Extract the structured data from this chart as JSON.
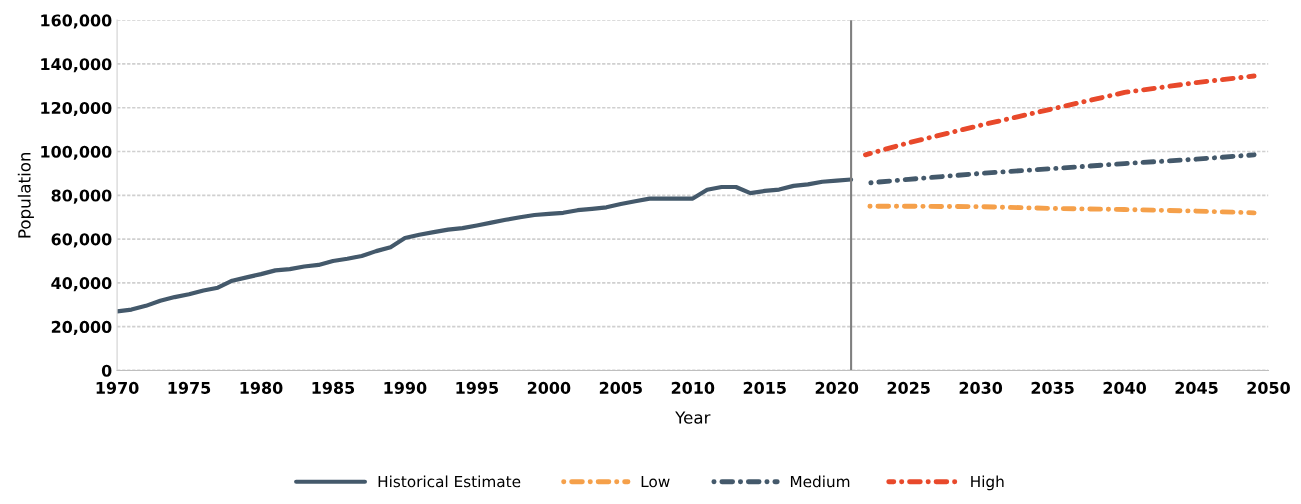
{
  "chart_data": {
    "type": "line",
    "xlabel": "Year",
    "ylabel": "Population",
    "xlim": [
      1970,
      2050
    ],
    "xticks": [
      1970,
      1975,
      1980,
      1985,
      1990,
      1995,
      2000,
      2005,
      2010,
      2015,
      2020,
      2025,
      2030,
      2035,
      2040,
      2045,
      2050
    ],
    "ylim": [
      0,
      160000
    ],
    "yticks": [
      {
        "value": 0,
        "label": "0"
      },
      {
        "value": 20000,
        "label": "20,000"
      },
      {
        "value": 40000,
        "label": "40,000"
      },
      {
        "value": 60000,
        "label": "60,000"
      },
      {
        "value": 80000,
        "label": "80,000"
      },
      {
        "value": 100000,
        "label": "100,000"
      },
      {
        "value": 120000,
        "label": "120,000"
      },
      {
        "value": 140000,
        "label": "140,000"
      },
      {
        "value": 160000,
        "label": "160,000"
      }
    ],
    "grid": "y",
    "legend": "bottom",
    "ref_lines": [
      {
        "axis": "x",
        "value": 2021,
        "color": "#7f7f7f"
      }
    ],
    "series": [
      {
        "name": "Historical Estimate",
        "color": "#44596b",
        "line_style": "solid",
        "x": [
          1970,
          1971,
          1972,
          1973,
          1974,
          1975,
          1976,
          1977,
          1978,
          1979,
          1980,
          1981,
          1982,
          1983,
          1984,
          1985,
          1986,
          1987,
          1988,
          1989,
          1990,
          1991,
          1992,
          1993,
          1994,
          1995,
          1996,
          1997,
          1998,
          1999,
          2000,
          2001,
          2002,
          2003,
          2004,
          2005,
          2006,
          2007,
          2008,
          2009,
          2010,
          2011,
          2012,
          2013,
          2014,
          2015,
          2016,
          2017,
          2018,
          2019,
          2020,
          2021
        ],
        "values": [
          27000,
          27800,
          29500,
          31800,
          33500,
          34800,
          36500,
          37800,
          41000,
          42500,
          44000,
          45700,
          46300,
          47500,
          48200,
          50000,
          51000,
          52300,
          54500,
          56300,
          60500,
          62000,
          63200,
          64300,
          65000,
          66200,
          67500,
          68800,
          70000,
          71000,
          71500,
          72000,
          73200,
          73800,
          74500,
          76000,
          77300,
          78500,
          78500,
          78500,
          78500,
          82500,
          83800,
          83800,
          81000,
          82000,
          82600,
          84300,
          85000,
          86200,
          86700,
          87200
        ]
      },
      {
        "name": "Low",
        "color": "#f5a04a",
        "line_style": "dashdot",
        "x": [
          2022,
          2025,
          2030,
          2035,
          2040,
          2045,
          2049
        ],
        "values": [
          75000,
          75000,
          74800,
          74000,
          73500,
          72800,
          72000
        ]
      },
      {
        "name": "Medium",
        "color": "#44596b",
        "line_style": "dashdot",
        "x": [
          2022,
          2025,
          2030,
          2035,
          2040,
          2045,
          2049
        ],
        "values": [
          85500,
          87300,
          90000,
          92200,
          94500,
          96500,
          98500
        ]
      },
      {
        "name": "High",
        "color": "#e8492b",
        "line_style": "dashdot",
        "x": [
          2022,
          2025,
          2030,
          2035,
          2040,
          2045,
          2049
        ],
        "values": [
          98500,
          104000,
          112000,
          119500,
          127000,
          131500,
          134500
        ]
      }
    ]
  }
}
